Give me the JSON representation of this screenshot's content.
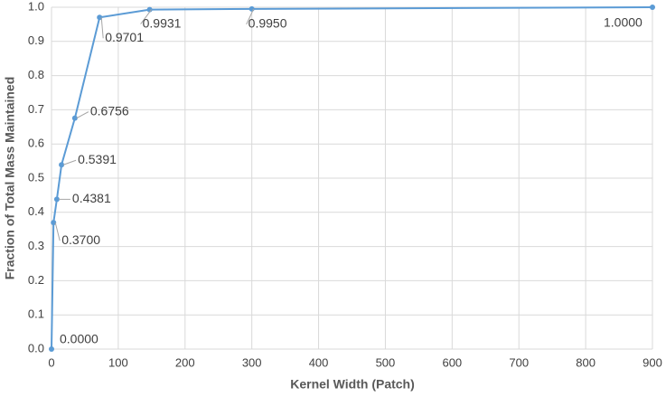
{
  "chart_data": {
    "type": "line",
    "x_label": "Kernel Width (Patch)",
    "y_label": "Fraction of Total Mass Maintained",
    "x": [
      0,
      3,
      8,
      15,
      35,
      72,
      147,
      300,
      900
    ],
    "series": [
      {
        "color": "#5b9bd5",
        "values": [
          0,
          0.37,
          0.4381,
          0.5391,
          0.6756,
          0.9701,
          0.9931,
          0.995,
          1
        ],
        "value_labels": [
          "0.0000",
          "0.3700",
          "0.4381",
          "0.5391",
          "0.6756",
          "0.9701",
          "0.9931",
          "0.9950",
          "1.0000"
        ]
      }
    ],
    "xlim": [
      0,
      900
    ],
    "xticks": [
      0,
      100,
      200,
      300,
      400,
      500,
      600,
      700,
      800,
      900
    ],
    "ylim": [
      0,
      1
    ],
    "yticks": [
      {
        "value": 0,
        "label": "0.0"
      },
      {
        "value": 0.1,
        "label": "0.1"
      },
      {
        "value": 0.2,
        "label": "0.2"
      },
      {
        "value": 0.3,
        "label": "0.3"
      },
      {
        "value": 0.4,
        "label": "0.4"
      },
      {
        "value": 0.5,
        "label": "0.5"
      },
      {
        "value": 0.6,
        "label": "0.6"
      },
      {
        "value": 0.7,
        "label": "0.7"
      },
      {
        "value": 0.8,
        "label": "0.8"
      },
      {
        "value": 0.9,
        "label": "0.9"
      },
      {
        "value": 1,
        "label": "1.0"
      }
    ],
    "grid": true
  }
}
